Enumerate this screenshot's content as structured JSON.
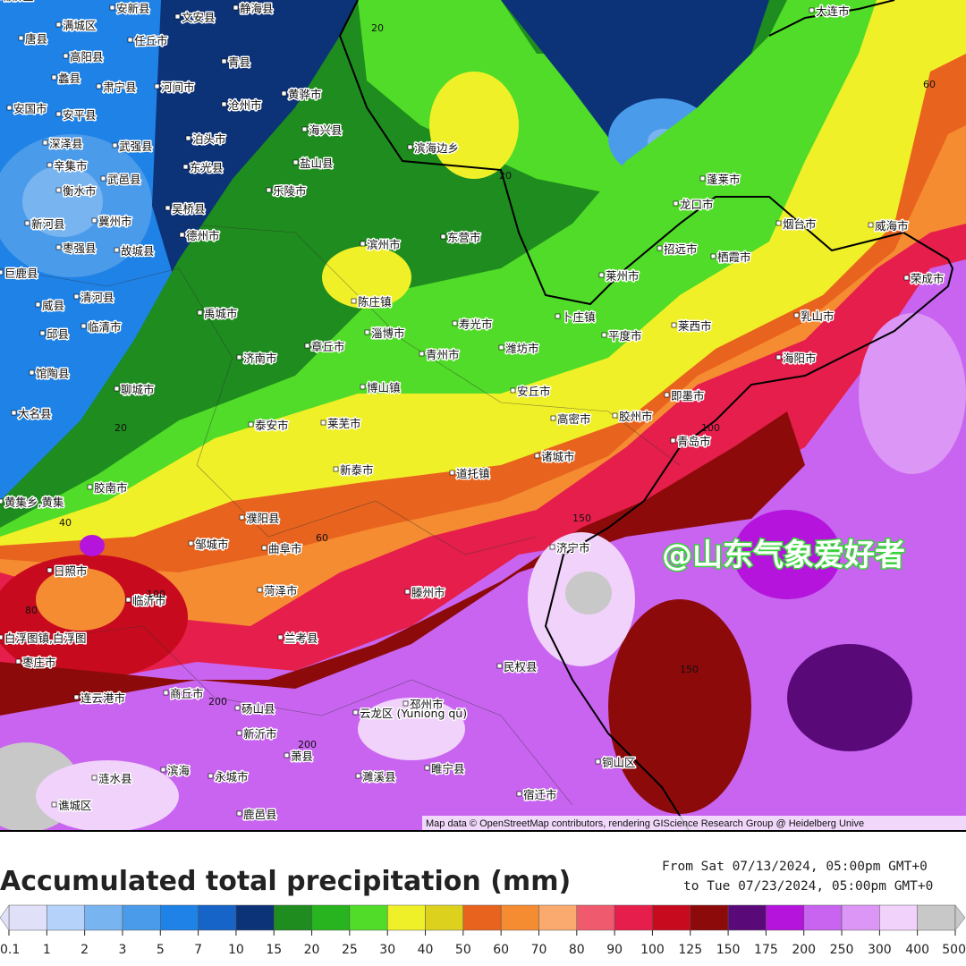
{
  "map": {
    "labels": [
      "安新县",
      "文安县",
      "静海县",
      "满城区",
      "唐县",
      "任丘市",
      "大连市",
      "高阳县",
      "青县",
      "蠡县",
      "肃宁县",
      "河间市",
      "黄骅市",
      "沧州市",
      "安国市",
      "安平县",
      "海兴县",
      "深泽县",
      "武强县",
      "泊头市",
      "辛集市",
      "盐山县",
      "东光县",
      "衡水市",
      "武邑县",
      "乐陵市",
      "滨海边乡",
      "蓬莱市",
      "龙口市",
      "吴桥县",
      "新河县",
      "冀州市",
      "德州市",
      "滨州市",
      "东营市",
      "烟台市",
      "威海市",
      "枣强县",
      "故城县",
      "巨鹿县",
      "招远市",
      "栖霞市",
      "莱州市",
      "荣成市",
      "陈庄镇",
      "禹城市",
      "清河县",
      "威县",
      "临清市",
      "邱县",
      "卜庄镇",
      "乳山市",
      "淄博市",
      "寿光市",
      "莱西市",
      "平度市",
      "济南市",
      "章丘市",
      "青州市",
      "潍坊市",
      "海阳市",
      "馆陶县",
      "聊城市",
      "博山镇",
      "安丘市",
      "即墨市",
      "大名县",
      "泰安市",
      "莱芜市",
      "高密市",
      "胶州市",
      "青岛市",
      "诸城市",
      "新泰市",
      "道托镇",
      "胶南市",
      "黄集乡,黄集",
      "濮阳县",
      "曲阜市",
      "邹城市",
      "济宁市",
      "日照市",
      "菏泽市",
      "滕州市",
      "临沂市",
      "白浮图镇,白浮图",
      "兰考县",
      "枣庄市",
      "民权县",
      "连云港市",
      "商丘市",
      "砀山县",
      "云龙区 (Yúnlóng qū)",
      "邳州市",
      "新沂市",
      "萧县",
      "铜山区",
      "滨海",
      "永城市",
      "濉溪县",
      "睢宁县",
      "宿迁市",
      "涟水县",
      "谯城区",
      "鹿邑县",
      "埇桥区"
    ],
    "contour_labels": [
      20,
      20,
      20,
      40,
      60,
      60,
      80,
      100,
      100,
      150,
      150,
      200,
      200
    ],
    "watermark": "@山东气象爱好者",
    "attribution": "Map data © OpenStreetMap contributors, rendering GIScience Research Group @ Heidelberg Unive"
  },
  "footer": {
    "title": "Accumulated total precipitation (mm)",
    "from": "From Sat 07/13/2024, 05:00pm GMT+0",
    "to": "to Tue 07/23/2024, 05:00pm GMT+0"
  },
  "legend": {
    "ticks": [
      0.1,
      1,
      2,
      3,
      5,
      7,
      10,
      15,
      20,
      25,
      30,
      40,
      50,
      60,
      70,
      80,
      90,
      100,
      125,
      150,
      175,
      200,
      250,
      300,
      400,
      500
    ],
    "colors": [
      "#e0e0f8",
      "#b4d2fa",
      "#78b4f0",
      "#4b9beb",
      "#1e82e6",
      "#1664c8",
      "#0c3278",
      "#1e8c1e",
      "#28b41e",
      "#50dc28",
      "#f0f028",
      "#dcd21e",
      "#e8641e",
      "#f58c32",
      "#faaa6e",
      "#f05a6e",
      "#e61e4b",
      "#c80a1e",
      "#8c0a0a",
      "#5a0a78",
      "#b414dc",
      "#c864f0",
      "#dc96f5",
      "#f0d2fa",
      "#c8c8c8"
    ]
  }
}
